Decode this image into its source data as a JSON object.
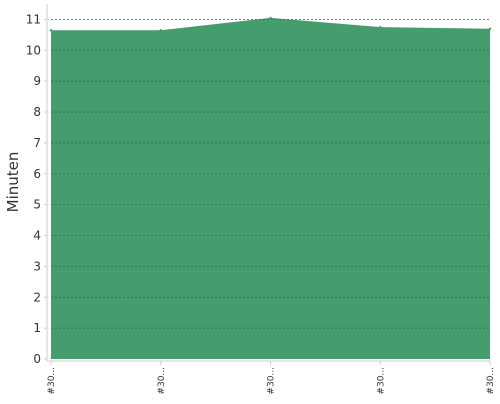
{
  "chart_data": {
    "type": "area",
    "title": "",
    "xlabel": "",
    "ylabel": "Minuten",
    "x": [
      "#30...",
      "#30...",
      "#30...",
      "#30...",
      "#30..."
    ],
    "series": [
      {
        "values": [
          10.65,
          10.65,
          11.05,
          10.75,
          10.7
        ],
        "color": "#459c6c"
      }
    ],
    "ylim": [
      0,
      11.5
    ],
    "yticks": [
      0,
      1,
      2,
      3,
      4,
      5,
      6,
      7,
      8,
      9,
      10,
      11
    ],
    "grid": true,
    "legend": "none",
    "gridline_color": "#2f6e4a",
    "axis_color": "#cccccc"
  }
}
